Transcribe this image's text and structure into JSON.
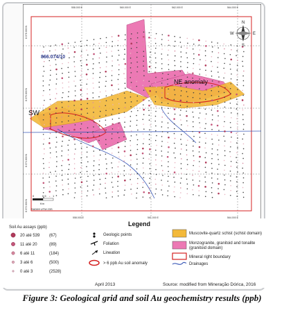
{
  "map": {
    "block_label": "866.074/10",
    "ne_anomaly": "NE anomaly",
    "sw_label": "SW",
    "top_coords": [
      "558.000 E",
      "560.000 E",
      "562.000 E",
      "564.000 E"
    ],
    "bottom_coords": [
      "558.000 E",
      "561.000 E",
      "564.000 E"
    ],
    "left_coords": [
      "8.378.000 N",
      "8.376.000 N",
      "8.374.000 N",
      "8.372.000 N"
    ],
    "scale_ticks": [
      "0",
      "0.5",
      "1"
    ],
    "scale_unit": "Km",
    "datum": "SAD69 UTM 23S",
    "north_arrow": {
      "n": "N",
      "s": "S",
      "e": "E",
      "w": "W"
    }
  },
  "legend": {
    "title": "Legend",
    "soil_title": "Soil Au assays (ppb)",
    "soil_classes": [
      {
        "range": "20 até 539",
        "count": "(67)",
        "color": "#b03a5a"
      },
      {
        "range": "11 até 20",
        "count": "(89)",
        "color": "#c4567a"
      },
      {
        "range": "6 até 11",
        "count": "(184)",
        "color": "#d88aa0"
      },
      {
        "range": "3 até 6",
        "count": "(500)",
        "color": "#e8b5c2"
      },
      {
        "range": "0 até 3",
        "count": "(2528)",
        "color": "#f3dde3"
      }
    ],
    "symbols": [
      {
        "label": "Geologic points",
        "icon": "point-icon"
      },
      {
        "label": "Foliation",
        "icon": "foliation-icon"
      },
      {
        "label": "Lineation",
        "icon": "lineation-icon"
      },
      {
        "label": "> 6 ppb Au soil anomaly",
        "icon": "anomaly-icon"
      }
    ],
    "units": [
      {
        "label": "Muscovite-quartz schist (schist domain)",
        "color": "#f3b93a"
      },
      {
        "label": "Monzogranite, granitoid and tonalite (granitoid domain)",
        "color": "#ec79b4"
      },
      {
        "label": "Mineral right boundary",
        "color": "#d42020"
      },
      {
        "label": "Drainages",
        "color": "#3c5ab8"
      }
    ],
    "date": "April 2013",
    "source": "Source: modified from Mineração Dórica, 2016"
  },
  "caption": "Figure 3: Geological grid and soil Au geochemistry results (ppb)"
}
